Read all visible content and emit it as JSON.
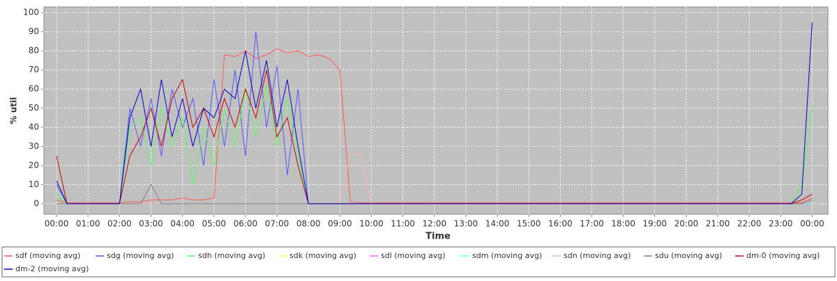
{
  "chart_data": {
    "type": "line",
    "y_label": "% util",
    "x_label": "Time",
    "x": [
      0,
      0.33,
      0.67,
      1,
      1.33,
      1.67,
      2,
      2.33,
      2.67,
      3,
      3.33,
      3.67,
      4,
      4.33,
      4.67,
      5,
      5.33,
      5.67,
      6,
      6.33,
      6.67,
      7,
      7.33,
      7.67,
      8,
      8.33,
      8.67,
      9,
      9.33,
      9.67,
      10,
      10.33,
      10.67,
      11,
      11.33,
      11.67,
      12,
      12.33,
      12.67,
      13,
      13.33,
      13.67,
      14,
      14.33,
      14.67,
      15,
      15.33,
      15.67,
      16,
      16.33,
      16.67,
      17,
      17.33,
      17.67,
      18,
      18.33,
      18.67,
      19,
      19.33,
      19.67,
      20,
      20.33,
      20.67,
      21,
      21.33,
      21.67,
      22,
      22.33,
      22.67,
      23,
      23.33,
      23.67,
      24
    ],
    "series": [
      {
        "name": "sdf (moving avg)",
        "color": "#ff5555",
        "values": [
          2,
          0.5,
          0.5,
          0.5,
          0.5,
          0.5,
          0.5,
          1,
          1,
          2,
          2,
          2,
          3,
          2,
          2,
          3,
          78,
          77,
          80,
          76,
          78,
          81,
          79,
          80,
          77,
          78,
          76,
          70,
          1,
          0.5,
          0.5,
          0.5,
          0.5,
          0.5,
          0.5,
          0.5,
          0.5,
          0.5,
          0.5,
          0.5,
          0.5,
          0.5,
          0.5,
          0.5,
          0.5,
          0.5,
          0.5,
          0.5,
          0.5,
          0.5,
          0.5,
          0.5,
          0.5,
          0.5,
          0.5,
          0.5,
          0.5,
          0.5,
          0.5,
          0.5,
          0.5,
          0.5,
          0.5,
          0.5,
          0.5,
          0.5,
          0.5,
          0.5,
          0.5,
          0.5,
          0.5,
          0.5,
          3
        ]
      },
      {
        "name": "sdg (moving avg)",
        "color": "#5555ff",
        "values": [
          10,
          0,
          0,
          0,
          0,
          0,
          0,
          50,
          30,
          55,
          25,
          60,
          40,
          55,
          20,
          65,
          30,
          70,
          25,
          90,
          40,
          72,
          15,
          60,
          0,
          0,
          0,
          0,
          0,
          0,
          0,
          0,
          0,
          0,
          0,
          0,
          0,
          0,
          0,
          0,
          0,
          0,
          0,
          0,
          0,
          0,
          0,
          0,
          0,
          0,
          0,
          0,
          0,
          0,
          0,
          0,
          0,
          0,
          0,
          0,
          0,
          0,
          0,
          0,
          0,
          0,
          0,
          0,
          0,
          0,
          0,
          0,
          0
        ]
      },
      {
        "name": "sdh (moving avg)",
        "color": "#55ff55",
        "values": [
          5,
          0,
          0,
          0,
          0,
          0,
          0,
          40,
          45,
          20,
          50,
          30,
          45,
          10,
          40,
          20,
          50,
          30,
          60,
          35,
          62,
          30,
          55,
          25,
          0,
          0,
          0,
          0,
          0,
          0,
          0,
          0,
          0,
          0,
          0,
          0,
          0,
          0,
          0,
          0,
          0,
          0,
          0,
          0,
          0,
          0,
          0,
          0,
          0,
          0,
          0,
          0,
          0,
          0,
          0,
          0,
          0,
          0,
          0,
          0,
          0,
          0,
          0,
          0,
          0,
          0,
          0,
          0,
          0,
          0,
          0,
          10,
          50
        ]
      },
      {
        "name": "sdk (moving avg)",
        "color": "#ffff55",
        "values": [
          0,
          0,
          0,
          0,
          0,
          0,
          0,
          0,
          0,
          0,
          0,
          0,
          0,
          0,
          0,
          0,
          0,
          0,
          0,
          0,
          0,
          0,
          0,
          0,
          0,
          0,
          0,
          0,
          0,
          0,
          0,
          0,
          0,
          0,
          0,
          0,
          0,
          0,
          0,
          0,
          0,
          0,
          0,
          0,
          0,
          0,
          0,
          0,
          0,
          0,
          0,
          0,
          0,
          0,
          0,
          0,
          0,
          0,
          0,
          0,
          0,
          0,
          0,
          0,
          0,
          0,
          0,
          0,
          0,
          0,
          0,
          0,
          0
        ]
      },
      {
        "name": "sdl (moving avg)",
        "color": "#ff55ff",
        "values": [
          0,
          0,
          0,
          0,
          0,
          0,
          0,
          0,
          0,
          0,
          0,
          0,
          0,
          0,
          0,
          0,
          0,
          0,
          0,
          0,
          0,
          0,
          0,
          0,
          0,
          0,
          0,
          0,
          0,
          0,
          0,
          0,
          0,
          0,
          0,
          0,
          0,
          0,
          0,
          0,
          0,
          0,
          0,
          0,
          0,
          0,
          0,
          0,
          0,
          0,
          0,
          0,
          0,
          0,
          0,
          0,
          0,
          0,
          0,
          0,
          0,
          0,
          0,
          0,
          0,
          0,
          0,
          0,
          0,
          0,
          0,
          0,
          0
        ]
      },
      {
        "name": "sdm (moving avg)",
        "color": "#55ffff",
        "values": [
          0,
          0,
          0,
          0,
          0,
          0,
          0,
          0,
          0,
          0,
          0,
          0,
          0,
          0,
          0,
          0,
          0,
          0,
          0,
          0,
          0,
          0,
          0,
          0,
          0,
          0,
          0,
          0,
          0,
          0,
          0,
          0,
          0,
          0,
          0,
          0,
          0,
          0,
          0,
          0,
          0,
          0,
          0,
          0,
          0,
          0,
          0,
          0,
          0,
          0,
          0,
          0,
          0,
          0,
          0,
          0,
          0,
          0,
          0,
          0,
          0,
          0,
          0,
          0,
          0,
          0,
          0,
          0,
          0,
          0,
          0,
          0,
          0
        ]
      },
      {
        "name": "sdn (moving avg)",
        "color": "#ffafaf",
        "values": [
          0,
          0,
          0,
          0,
          0,
          0,
          0,
          0,
          0,
          0,
          0,
          0,
          0,
          0,
          0,
          0,
          0,
          0,
          0,
          0,
          0,
          0,
          0,
          0,
          0,
          0,
          0,
          0,
          26,
          26,
          0,
          0,
          0,
          0,
          0,
          0,
          0,
          0,
          0,
          0,
          0,
          0,
          0,
          0,
          0,
          0,
          0,
          0,
          0,
          0,
          0,
          0,
          0,
          0,
          0,
          0,
          0,
          0,
          0,
          0,
          0,
          0,
          0,
          0,
          0,
          0,
          0,
          0,
          0,
          0,
          0,
          0,
          2
        ]
      },
      {
        "name": "sdu (moving avg)",
        "color": "#808080",
        "values": [
          0,
          0,
          0,
          0,
          0,
          0,
          0,
          0,
          0,
          10,
          0,
          0,
          0,
          0,
          0,
          0,
          0,
          0,
          0,
          0,
          0,
          0,
          0,
          0,
          0,
          0,
          0,
          0,
          0,
          0,
          0,
          0,
          0,
          0,
          0,
          0,
          0,
          0,
          0,
          0,
          0,
          0,
          0,
          0,
          0,
          0,
          0,
          0,
          0,
          0,
          0,
          0,
          0,
          0,
          0,
          0,
          0,
          0,
          0,
          0,
          0,
          0,
          0,
          0,
          0,
          0,
          0,
          0,
          0,
          0,
          0,
          0,
          2
        ]
      },
      {
        "name": "dm-0 (moving avg)",
        "color": "#c00000",
        "values": [
          25,
          0,
          0,
          0,
          0,
          0,
          0,
          25,
          35,
          50,
          30,
          55,
          65,
          40,
          50,
          35,
          55,
          40,
          60,
          45,
          70,
          35,
          45,
          20,
          0,
          0,
          0,
          0,
          0,
          0,
          0,
          0,
          0,
          0,
          0,
          0,
          0,
          0,
          0,
          0,
          0,
          0,
          0,
          0,
          0,
          0,
          0,
          0,
          0,
          0,
          0,
          0,
          0,
          0,
          0,
          0,
          0,
          0,
          0,
          0,
          0,
          0,
          0,
          0,
          0,
          0,
          0,
          0,
          0,
          0,
          0,
          2,
          5
        ]
      },
      {
        "name": "dm-2 (moving avg)",
        "color": "#0000c0",
        "values": [
          12,
          0,
          0,
          0,
          0,
          0,
          0,
          45,
          60,
          30,
          65,
          35,
          55,
          30,
          50,
          45,
          60,
          55,
          80,
          50,
          75,
          40,
          65,
          30,
          0,
          0,
          0,
          0,
          0,
          0,
          0,
          0,
          0,
          0,
          0,
          0,
          0,
          0,
          0,
          0,
          0,
          0,
          0,
          0,
          0,
          0,
          0,
          0,
          0,
          0,
          0,
          0,
          0,
          0,
          0,
          0,
          0,
          0,
          0,
          0,
          0,
          0,
          0,
          0,
          0,
          0,
          0,
          0,
          0,
          0,
          0,
          5,
          95
        ]
      }
    ],
    "xlim": [
      -0.4,
      24.5
    ],
    "xticks": [
      {
        "value": 0,
        "label": "00:00"
      },
      {
        "value": 1,
        "label": "01:00"
      },
      {
        "value": 2,
        "label": "02:00"
      },
      {
        "value": 3,
        "label": "03:00"
      },
      {
        "value": 4,
        "label": "04:00"
      },
      {
        "value": 5,
        "label": "05:00"
      },
      {
        "value": 6,
        "label": "06:00"
      },
      {
        "value": 7,
        "label": "07:00"
      },
      {
        "value": 8,
        "label": "08:00"
      },
      {
        "value": 9,
        "label": "09:00"
      },
      {
        "value": 10,
        "label": "10:00"
      },
      {
        "value": 11,
        "label": "11:00"
      },
      {
        "value": 12,
        "label": "12:00"
      },
      {
        "value": 13,
        "label": "13:00"
      },
      {
        "value": 14,
        "label": "14:00"
      },
      {
        "value": 15,
        "label": "15:00"
      },
      {
        "value": 16,
        "label": "16:00"
      },
      {
        "value": 17,
        "label": "17:00"
      },
      {
        "value": 18,
        "label": "18:00"
      },
      {
        "value": 19,
        "label": "19:00"
      },
      {
        "value": 20,
        "label": "20:00"
      },
      {
        "value": 21,
        "label": "21:00"
      },
      {
        "value": 22,
        "label": "22:00"
      },
      {
        "value": 23,
        "label": "23:00"
      },
      {
        "value": 24,
        "label": "00:00"
      }
    ],
    "ylim": [
      -5.5,
      103
    ],
    "yticks": [
      0,
      10,
      20,
      30,
      40,
      50,
      60,
      70,
      80,
      90,
      100
    ],
    "grid": true,
    "legend": "bottom"
  }
}
